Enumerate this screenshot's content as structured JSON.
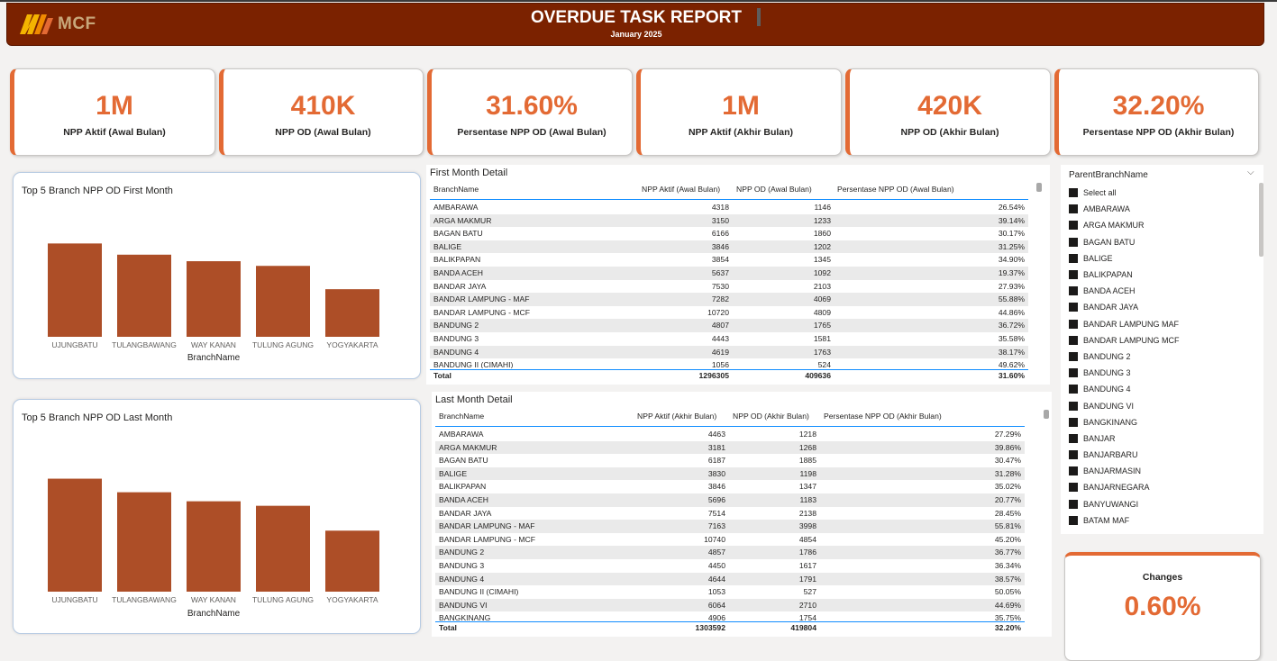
{
  "header": {
    "logo_text": "MCF",
    "title": "OVERDUE TASK REPORT",
    "period": "January 2025"
  },
  "kpis": [
    {
      "value": "1M",
      "label": "NPP Aktif (Awal Bulan)"
    },
    {
      "value": "410K",
      "label": "NPP OD (Awal Bulan)"
    },
    {
      "value": "31.60%",
      "label": "Persentase NPP OD (Awal Bulan)"
    },
    {
      "value": "1M",
      "label": "NPP Aktif (Akhir Bulan)"
    },
    {
      "value": "420K",
      "label": "NPP OD (Akhir Bulan)"
    },
    {
      "value": "32.20%",
      "label": "Persentase NPP OD (Akhir Bulan)"
    }
  ],
  "colors": {
    "accent": "#e36a34",
    "bar": "#ad4e27",
    "header": "#7b2200",
    "table_line": "#118dff"
  },
  "chart_data": [
    {
      "type": "bar",
      "title": "Top 5 Branch NPP OD First Month",
      "xlabel": "BranchName",
      "ylabel": "",
      "categories": [
        "UJUNGBATU",
        "TULANGBAWANG",
        "WAY KANAN",
        "TULUNG AGUNG",
        "YOGYAKARTA"
      ],
      "values": [
        100,
        88,
        81,
        76,
        51
      ],
      "ylim": [
        0,
        110
      ],
      "grid": false
    },
    {
      "type": "bar",
      "title": "Top 5 Branch NPP OD Last Month",
      "xlabel": "BranchName",
      "ylabel": "",
      "categories": [
        "UJUNGBATU",
        "TULANGBAWANG",
        "WAY KANAN",
        "TULUNG AGUNG",
        "YOGYAKARTA"
      ],
      "values": [
        100,
        88,
        80,
        76,
        54
      ],
      "ylim": [
        0,
        110
      ],
      "grid": false
    }
  ],
  "first_table": {
    "title": "First Month Detail",
    "columns": [
      "BranchName",
      "NPP Aktif (Awal Bulan)",
      "NPP OD (Awal Bulan)",
      "Persentase NPP OD (Awal Bulan)"
    ],
    "rows": [
      [
        "AMBARAWA",
        "4318",
        "1146",
        "26.54%"
      ],
      [
        "ARGA MAKMUR",
        "3150",
        "1233",
        "39.14%"
      ],
      [
        "BAGAN BATU",
        "6166",
        "1860",
        "30.17%"
      ],
      [
        "BALIGE",
        "3846",
        "1202",
        "31.25%"
      ],
      [
        "BALIKPAPAN",
        "3854",
        "1345",
        "34.90%"
      ],
      [
        "BANDA ACEH",
        "5637",
        "1092",
        "19.37%"
      ],
      [
        "BANDAR JAYA",
        "7530",
        "2103",
        "27.93%"
      ],
      [
        "BANDAR LAMPUNG - MAF",
        "7282",
        "4069",
        "55.88%"
      ],
      [
        "BANDAR LAMPUNG - MCF",
        "10720",
        "4809",
        "44.86%"
      ],
      [
        "BANDUNG 2",
        "4807",
        "1765",
        "36.72%"
      ],
      [
        "BANDUNG 3",
        "4443",
        "1581",
        "35.58%"
      ],
      [
        "BANDUNG 4",
        "4619",
        "1763",
        "38.17%"
      ],
      [
        "BANDUNG II (CIMAHI)",
        "1056",
        "524",
        "49.62%"
      ]
    ],
    "total": [
      "Total",
      "1296305",
      "409636",
      "31.60%"
    ]
  },
  "last_table": {
    "title": "Last Month Detail",
    "columns": [
      "BranchName",
      "NPP Aktif (Akhir Bulan)",
      "NPP OD (Akhir Bulan)",
      "Persentase NPP OD (Akhir Bulan)"
    ],
    "rows": [
      [
        "AMBARAWA",
        "4463",
        "1218",
        "27.29%"
      ],
      [
        "ARGA MAKMUR",
        "3181",
        "1268",
        "39.86%"
      ],
      [
        "BAGAN BATU",
        "6187",
        "1885",
        "30.47%"
      ],
      [
        "BALIGE",
        "3830",
        "1198",
        "31.28%"
      ],
      [
        "BALIKPAPAN",
        "3846",
        "1347",
        "35.02%"
      ],
      [
        "BANDA ACEH",
        "5696",
        "1183",
        "20.77%"
      ],
      [
        "BANDAR JAYA",
        "7514",
        "2138",
        "28.45%"
      ],
      [
        "BANDAR LAMPUNG - MAF",
        "7163",
        "3998",
        "55.81%"
      ],
      [
        "BANDAR LAMPUNG - MCF",
        "10740",
        "4854",
        "45.20%"
      ],
      [
        "BANDUNG 2",
        "4857",
        "1786",
        "36.77%"
      ],
      [
        "BANDUNG 3",
        "4450",
        "1617",
        "36.34%"
      ],
      [
        "BANDUNG 4",
        "4644",
        "1791",
        "38.57%"
      ],
      [
        "BANDUNG II (CIMAHI)",
        "1053",
        "527",
        "50.05%"
      ],
      [
        "BANDUNG VI",
        "6064",
        "2710",
        "44.69%"
      ],
      [
        "BANGKINANG",
        "4906",
        "1754",
        "35.75%"
      ]
    ],
    "total": [
      "Total",
      "1303592",
      "419804",
      "32.20%"
    ]
  },
  "slicer": {
    "title": "ParentBranchName",
    "items": [
      "Select all",
      "AMBARAWA",
      "ARGA MAKMUR",
      "BAGAN BATU",
      "BALIGE",
      "BALIKPAPAN",
      "BANDA ACEH",
      "BANDAR JAYA",
      "BANDAR LAMPUNG MAF",
      "BANDAR LAMPUNG MCF",
      "BANDUNG 2",
      "BANDUNG 3",
      "BANDUNG 4",
      "BANDUNG VI",
      "BANGKINANG",
      "BANJAR",
      "BANJARBARU",
      "BANJARMASIN",
      "BANJARNEGARA",
      "BANYUWANGI",
      "BATAM MAF"
    ]
  },
  "changes": {
    "label": "Changes",
    "value": "0.60%"
  }
}
